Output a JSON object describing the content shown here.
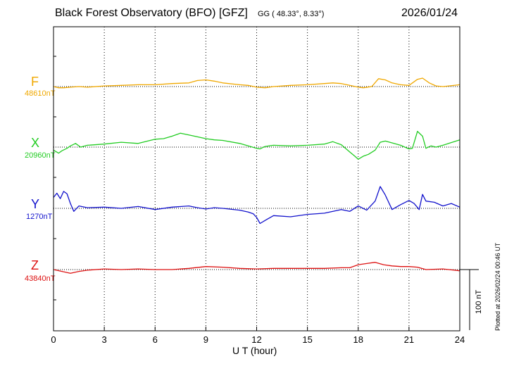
{
  "chart_data": {
    "type": "line",
    "title": "Black Forest Observatory (BFO)  [GFZ]",
    "coordinates_label": "GG ( 48.33°,   8.33°)",
    "date": "2026/01/24",
    "xlabel": "U T (hour)",
    "xlim": [
      0,
      24
    ],
    "x_ticks": [
      "0",
      "3",
      "6",
      "9",
      "12",
      "15",
      "18",
      "21",
      "24"
    ],
    "scale_label": "100 nT",
    "scale_nT": 100,
    "plotted_note": "Plotted at 2026/02/24 00:46 UT",
    "grid": true,
    "series": [
      {
        "name": "F",
        "baseline_label": "48610nT",
        "color": "#f0a800",
        "x": [
          0,
          0.3,
          0.6,
          1,
          1.5,
          2,
          3,
          4,
          5,
          6,
          7,
          8,
          8.5,
          9,
          9.5,
          10,
          11,
          11.5,
          12,
          12.5,
          13,
          14,
          15,
          16,
          16.5,
          17,
          17.5,
          18,
          18.3,
          18.8,
          19.2,
          19.6,
          20,
          20.5,
          21,
          21.5,
          21.8,
          22.2,
          22.6,
          23,
          24
        ],
        "values": [
          0,
          -2,
          -2,
          -1,
          0,
          -1,
          1,
          2,
          3,
          3,
          5,
          6,
          10,
          11,
          9,
          6,
          3,
          2,
          -1,
          -2,
          0,
          2,
          3,
          5,
          6,
          5,
          2,
          -1,
          -2,
          0,
          13,
          11,
          6,
          3,
          2,
          12,
          14,
          6,
          1,
          0,
          3
        ]
      },
      {
        "name": "X",
        "baseline_label": "20960nT",
        "color": "#22cc22",
        "x": [
          0,
          0.3,
          0.5,
          0.8,
          1,
          1.3,
          1.6,
          2,
          3,
          4,
          5,
          6,
          6.5,
          7,
          7.5,
          8,
          8.5,
          9,
          9.5,
          10,
          11,
          12,
          12.2,
          12.5,
          13,
          14,
          15,
          16,
          16.5,
          17,
          17.5,
          17.8,
          18,
          18.3,
          18.6,
          19,
          19.3,
          19.6,
          20,
          20.5,
          21,
          21.2,
          21.5,
          21.8,
          22,
          22.3,
          22.6,
          23,
          24
        ],
        "values": [
          -5,
          -10,
          -6,
          -2,
          2,
          6,
          0,
          3,
          5,
          8,
          6,
          13,
          14,
          18,
          23,
          20,
          17,
          14,
          12,
          11,
          6,
          -2,
          -3,
          1,
          3,
          2,
          3,
          5,
          9,
          4,
          -8,
          -15,
          -20,
          -15,
          -12,
          -5,
          8,
          10,
          7,
          3,
          -3,
          -2,
          26,
          18,
          -2,
          2,
          0,
          3,
          12
        ]
      },
      {
        "name": "Y",
        "baseline_label": "1270nT",
        "color": "#1111cc",
        "x": [
          0,
          0.2,
          0.4,
          0.6,
          0.8,
          1,
          1.2,
          1.5,
          2,
          3,
          4,
          5,
          6,
          7,
          8,
          8.5,
          9,
          9.5,
          10,
          11,
          11.5,
          11.8,
          12,
          12.2,
          12.5,
          13,
          14,
          15,
          16,
          17,
          17.5,
          18,
          18.5,
          19,
          19.3,
          19.6,
          20,
          20.5,
          21,
          21.3,
          21.6,
          21.8,
          22,
          22.5,
          23,
          23.5,
          24
        ],
        "values": [
          18,
          25,
          16,
          28,
          24,
          8,
          -5,
          4,
          1,
          2,
          0,
          3,
          -2,
          2,
          4,
          1,
          -1,
          1,
          0,
          -3,
          -6,
          -9,
          -15,
          -25,
          -20,
          -12,
          -14,
          -10,
          -8,
          -2,
          -5,
          4,
          -3,
          12,
          36,
          22,
          -2,
          6,
          13,
          8,
          -2,
          23,
          12,
          10,
          4,
          8,
          2
        ]
      },
      {
        "name": "Z",
        "baseline_label": "43840nT",
        "color": "#dd1111",
        "x": [
          0,
          0.5,
          1,
          1.5,
          2,
          3,
          4,
          5,
          6,
          7,
          8,
          9,
          10,
          11,
          12,
          13,
          14,
          15,
          16,
          17,
          17.5,
          18,
          18.5,
          19,
          19.5,
          20,
          20.5,
          21,
          21.5,
          22,
          23,
          24
        ],
        "values": [
          0,
          -3,
          -6,
          -3,
          -1,
          1,
          0,
          1,
          0,
          0,
          2,
          5,
          4,
          2,
          1,
          2,
          2,
          2,
          2,
          3,
          3,
          8,
          10,
          12,
          8,
          6,
          5,
          5,
          4,
          0,
          1,
          -2
        ]
      }
    ]
  }
}
